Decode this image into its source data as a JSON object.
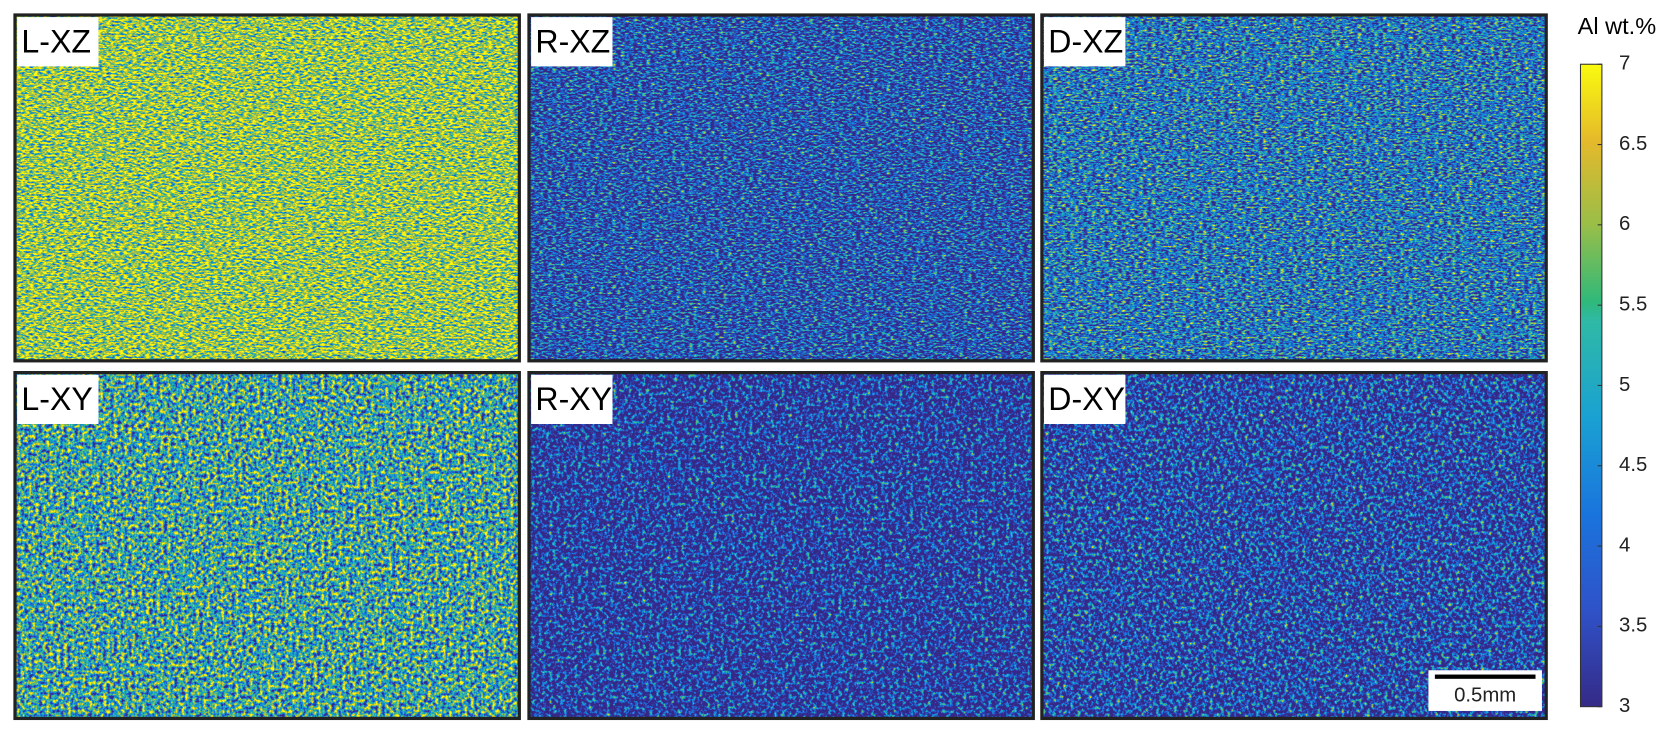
{
  "figure": {
    "panels": [
      {
        "label": "L-XZ"
      },
      {
        "label": "R-XZ"
      },
      {
        "label": "D-XZ"
      },
      {
        "label": "L-XY"
      },
      {
        "label": "R-XY"
      },
      {
        "label": "D-XY"
      }
    ],
    "colorbar": {
      "title": "Al wt.%",
      "lim": [
        3,
        7
      ],
      "ticks": [
        3,
        3.5,
        4,
        4.5,
        5,
        5.5,
        6,
        6.5,
        7
      ]
    },
    "scale_bar": {
      "label": "0.5mm"
    }
  }
}
